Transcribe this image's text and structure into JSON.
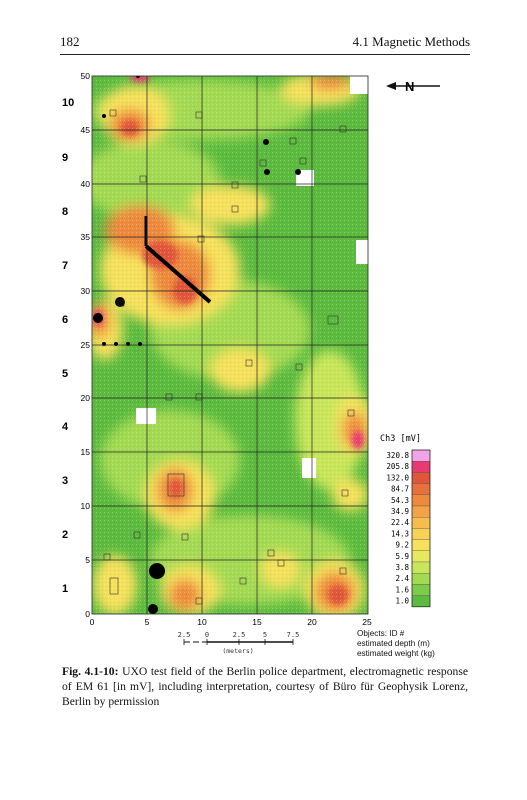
{
  "header": {
    "page_number": "182",
    "section": "4.1 Magnetic Methods"
  },
  "north": {
    "label": "N"
  },
  "axes": {
    "x_ticks": [
      "0",
      "5",
      "10",
      "15",
      "20",
      "25"
    ],
    "y_ticks_m": [
      "0",
      "5",
      "10",
      "15",
      "20",
      "25",
      "30",
      "35",
      "40",
      "45",
      "50"
    ],
    "grid_numbers": [
      "1",
      "2",
      "3",
      "4",
      "5",
      "6",
      "7",
      "8",
      "9",
      "10"
    ]
  },
  "scale_bar": {
    "ticks": [
      "2.5",
      "0",
      "2.5",
      "5",
      "7.5"
    ],
    "unit": "(meters)"
  },
  "legend": {
    "title": "Ch3 [mV]",
    "values": [
      "320.8",
      "205.8",
      "132.0",
      "84.7",
      "54.3",
      "34.9",
      "22.4",
      "14.3",
      "9.2",
      "5.9",
      "3.8",
      "2.4",
      "1.6",
      "1.0"
    ],
    "colors": [
      "#f0a4e6",
      "#e83a72",
      "#e0563a",
      "#e8703a",
      "#ee8a3e",
      "#f3a345",
      "#f6bc4e",
      "#f8d157",
      "#f6e15c",
      "#e6e85e",
      "#c9e65a",
      "#a4da52",
      "#7ccb49",
      "#5cbb3f"
    ]
  },
  "objects_key": {
    "line1": "Objects: ID #",
    "line2": "estimated depth (m)",
    "line3": "estimated weight (kg)"
  },
  "caption": {
    "label": "Fig. 4.1-10:",
    "text": "UXO test field of the Berlin police department, electromagnetic response of EM 61 [in mV], including interpretation, courtesy of Büro für Geophysik Lorenz, Berlin by permission"
  },
  "colors": {
    "background": "#5cbb3f",
    "low": "#7ccb49",
    "mid": "#f6e15c",
    "high": "#ee8a3e",
    "peak": "#e0563a",
    "target": "#000000"
  }
}
